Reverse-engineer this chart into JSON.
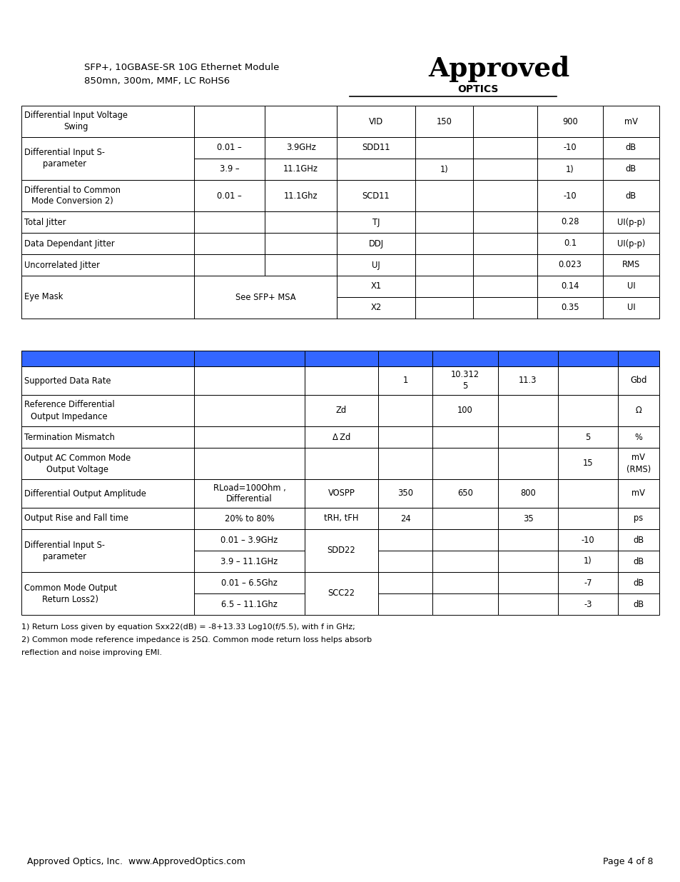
{
  "page_bg": "#ffffff",
  "header_text1": "SFP+, 10GBASE-SR 10G Ethernet Module",
  "header_text2": "850mn, 300m, MMF, LC RoHS6",
  "footer_left": "Approved Optics, Inc.  www.ApprovedOptics.com",
  "footer_right": "Page 4 of 8",
  "table2_header_color": "#3366ff",
  "border_color": "#000000",
  "footnotes": [
    "1) Return Loss given by equation Sxx22(dB) = -8+13.33 Log10(f/5.5), with f in GHz;",
    "2) Common mode reference impedance is 25Ω. Common mode return loss helps absorb",
    "reflection and noise improving EMI."
  ]
}
